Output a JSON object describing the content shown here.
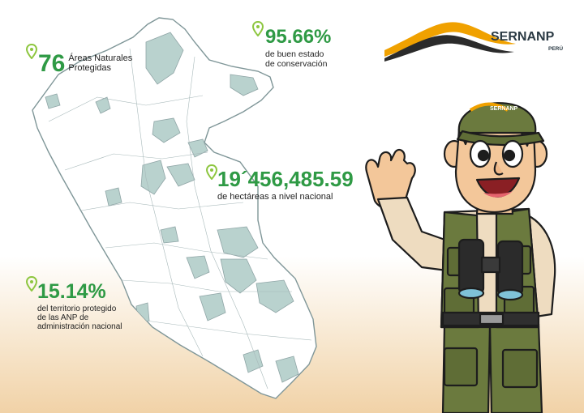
{
  "colors": {
    "accent_green": "#2f9a45",
    "map_region": "#b9d2ce",
    "map_stroke": "#8fa5a6",
    "logo_orange": "#f0a100"
  },
  "stats": {
    "areas": {
      "number": "76",
      "line1": "Áreas Naturales",
      "line2": "Protegidas"
    },
    "conservation": {
      "number": "95.66%",
      "line1": "de buen estado",
      "line2": "de conservación"
    },
    "hectares": {
      "number": "19´456,485.59",
      "line1": "de hectáreas a nivel nacional"
    },
    "territory": {
      "number": "15.14%",
      "line1": "del territorio protegido",
      "line2": "de las ANP de",
      "line3": "administración nacional"
    }
  },
  "logo": {
    "name": "SERNANP",
    "country": "PERÚ"
  },
  "mascot": {
    "cap_text": "SERNANP"
  }
}
